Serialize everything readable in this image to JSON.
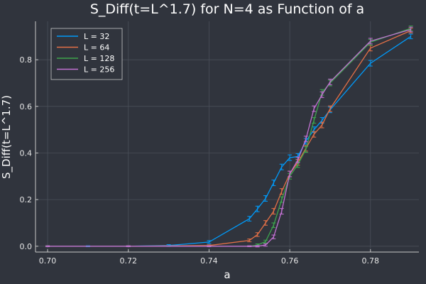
{
  "chart_data": {
    "type": "line",
    "title": "S_Diff(t=L^1.7) for N=4 as Function of a",
    "xlabel": "a",
    "ylabel": "S_Diff(t=L^1.7)",
    "xlim": [
      0.697,
      0.792
    ],
    "ylim": [
      -0.025,
      0.965
    ],
    "xticks": [
      "0.70",
      "0.72",
      "0.74",
      "0.76",
      "0.78"
    ],
    "yticks": [
      "0.0",
      "0.2",
      "0.4",
      "0.6",
      "0.8"
    ],
    "xtick_values": [
      0.7,
      0.72,
      0.74,
      0.76,
      0.78
    ],
    "ytick_values": [
      0.0,
      0.2,
      0.4,
      0.6,
      0.8
    ],
    "grid": true,
    "legend_position": "top-left",
    "colors": {
      "background": "#30343d",
      "plot_background": "#30343d",
      "axis": "#c8c8c8",
      "grid": "#4a4f59"
    },
    "series": [
      {
        "name": "L = 32",
        "color": "#009af9",
        "x": [
          0.7,
          0.71,
          0.72,
          0.73,
          0.74,
          0.75,
          0.752,
          0.754,
          0.756,
          0.758,
          0.76,
          0.762,
          0.764,
          0.766,
          0.768,
          0.77,
          0.78,
          0.79
        ],
        "y": [
          0.0,
          0.0,
          0.0,
          0.003,
          0.018,
          0.118,
          0.16,
          0.205,
          0.272,
          0.34,
          0.38,
          0.385,
          0.45,
          0.5,
          0.54,
          0.585,
          0.785,
          0.9
        ],
        "err": [
          0.002,
          0.002,
          0.002,
          0.004,
          0.006,
          0.01,
          0.012,
          0.012,
          0.012,
          0.012,
          0.012,
          0.012,
          0.012,
          0.012,
          0.012,
          0.012,
          0.012,
          0.01
        ]
      },
      {
        "name": "L = 64",
        "color": "#e26f46",
        "x": [
          0.7,
          0.72,
          0.74,
          0.75,
          0.752,
          0.754,
          0.756,
          0.758,
          0.76,
          0.762,
          0.764,
          0.766,
          0.768,
          0.77,
          0.78,
          0.79
        ],
        "y": [
          0.0,
          0.0,
          0.003,
          0.025,
          0.05,
          0.1,
          0.15,
          0.235,
          0.31,
          0.36,
          0.42,
          0.48,
          0.52,
          0.59,
          0.85,
          0.925
        ],
        "err": [
          0.002,
          0.002,
          0.003,
          0.006,
          0.008,
          0.01,
          0.012,
          0.012,
          0.012,
          0.012,
          0.012,
          0.012,
          0.012,
          0.012,
          0.012,
          0.01
        ]
      },
      {
        "name": "L = 128",
        "color": "#3da44d",
        "x": [
          0.7,
          0.72,
          0.74,
          0.75,
          0.752,
          0.754,
          0.756,
          0.758,
          0.76,
          0.762,
          0.764,
          0.766,
          0.768,
          0.77,
          0.78,
          0.79
        ],
        "y": [
          0.0,
          0.0,
          0.0,
          0.0,
          0.005,
          0.02,
          0.09,
          0.2,
          0.3,
          0.35,
          0.415,
          0.54,
          0.66,
          0.7,
          0.875,
          0.935
        ],
        "err": [
          0.002,
          0.002,
          0.002,
          0.002,
          0.005,
          0.006,
          0.01,
          0.012,
          0.012,
          0.012,
          0.012,
          0.012,
          0.012,
          0.012,
          0.012,
          0.01
        ]
      },
      {
        "name": "L = 256",
        "color": "#c271d2",
        "x": [
          0.7,
          0.72,
          0.74,
          0.75,
          0.752,
          0.754,
          0.756,
          0.758,
          0.76,
          0.762,
          0.764,
          0.766,
          0.768,
          0.77,
          0.78,
          0.79
        ],
        "y": [
          0.0,
          0.0,
          0.0,
          0.0,
          0.0,
          0.005,
          0.04,
          0.15,
          0.31,
          0.37,
          0.46,
          0.59,
          0.65,
          0.705,
          0.88,
          0.93
        ],
        "err": [
          0.002,
          0.002,
          0.002,
          0.002,
          0.003,
          0.005,
          0.008,
          0.012,
          0.012,
          0.012,
          0.012,
          0.012,
          0.012,
          0.012,
          0.012,
          0.01
        ]
      }
    ]
  }
}
